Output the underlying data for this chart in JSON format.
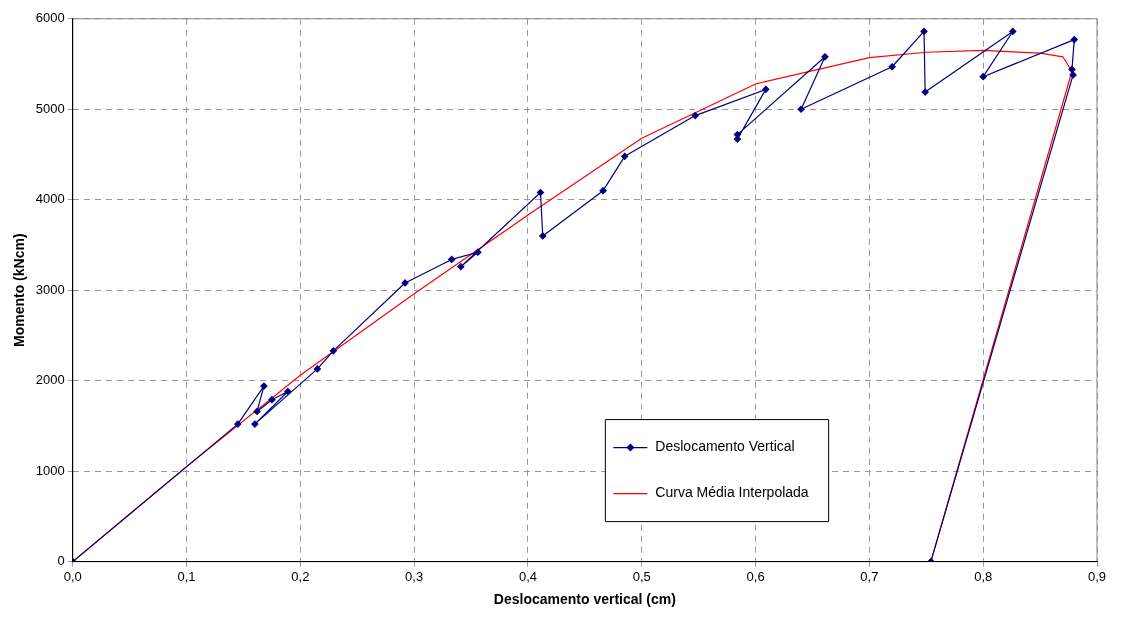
{
  "chart_data": {
    "type": "line",
    "xlabel": "Deslocamento vertical (cm)",
    "ylabel": "Momento (kNcm)",
    "xlim": [
      0,
      0.9
    ],
    "xticks": [
      {
        "value": 0,
        "label": "0,0"
      },
      {
        "value": 0.1,
        "label": "0,1"
      },
      {
        "value": 0.2,
        "label": "0,2"
      },
      {
        "value": 0.3,
        "label": "0,3"
      },
      {
        "value": 0.4,
        "label": "0,4"
      },
      {
        "value": 0.5,
        "label": "0,5"
      },
      {
        "value": 0.6,
        "label": "0,6"
      },
      {
        "value": 0.7,
        "label": "0,7"
      },
      {
        "value": 0.8,
        "label": "0,8"
      },
      {
        "value": 0.9,
        "label": "0,9"
      }
    ],
    "ylim": [
      0,
      6000
    ],
    "yticks": [
      0,
      1000,
      2000,
      3000,
      4000,
      5000,
      6000
    ],
    "grid": true,
    "legend": "bottom",
    "series": [
      {
        "name": "Deslocamento Vertical",
        "color": "#000080",
        "marker": "diamond",
        "x": [
          0,
          0.145,
          0.168,
          0.162,
          0.175,
          0.189,
          0.16,
          0.215,
          0.229,
          0.292,
          0.333,
          0.356,
          0.341,
          0.411,
          0.413,
          0.466,
          0.485,
          0.547,
          0.609,
          0.584,
          0.584,
          0.661,
          0.64,
          0.72,
          0.748,
          0.749,
          0.826,
          0.8,
          0.88,
          0.878,
          0.879,
          0.754
        ],
        "values": [
          0,
          1520,
          1940,
          1660,
          1790,
          1880,
          1520,
          2130,
          2330,
          3080,
          3340,
          3420,
          3260,
          4080,
          3600,
          4100,
          4480,
          4930,
          5220,
          4670,
          4720,
          5580,
          5000,
          5470,
          5860,
          5190,
          5860,
          5360,
          5770,
          5440,
          5380,
          0
        ]
      },
      {
        "name": "Curva Média Interpolada",
        "color": "#ff0000",
        "marker": "none",
        "x": [
          0,
          0.1,
          0.2,
          0.3,
          0.4,
          0.5,
          0.6,
          0.7,
          0.75,
          0.8,
          0.85,
          0.87,
          0.878,
          0.754
        ],
        "values": [
          0,
          1050,
          2060,
          2960,
          3830,
          4680,
          5280,
          5570,
          5630,
          5650,
          5620,
          5580,
          5420,
          0
        ]
      }
    ]
  }
}
